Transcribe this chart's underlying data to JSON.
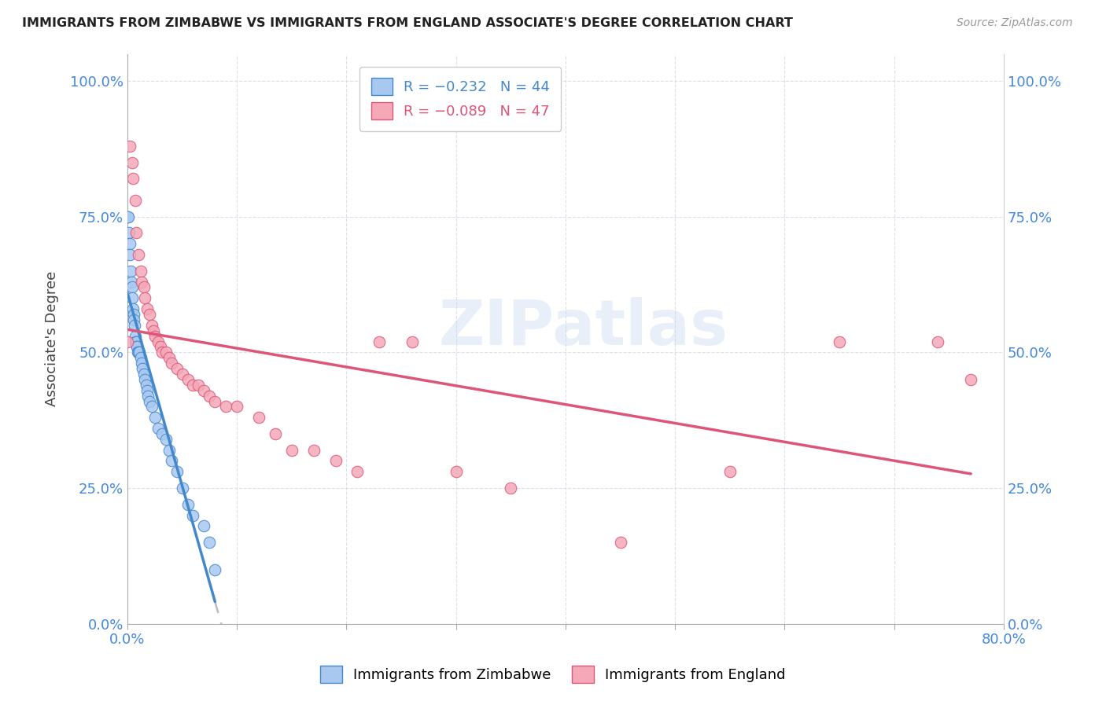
{
  "title": "IMMIGRANTS FROM ZIMBABWE VS IMMIGRANTS FROM ENGLAND ASSOCIATE'S DEGREE CORRELATION CHART",
  "source": "Source: ZipAtlas.com",
  "ylabel": "Associate's Degree",
  "ytick_labels": [
    "0.0%",
    "25.0%",
    "50.0%",
    "75.0%",
    "100.0%"
  ],
  "ytick_values": [
    0,
    25,
    50,
    75,
    100
  ],
  "xtick_labels": [
    "0.0%",
    "",
    "",
    "",
    "",
    "",
    "",
    "",
    "80.0%"
  ],
  "xtick_values": [
    0,
    10,
    20,
    30,
    40,
    50,
    60,
    70,
    80
  ],
  "legend_r_zimbabwe": "-0.232",
  "legend_n_zimbabwe": "44",
  "legend_r_england": "-0.089",
  "legend_n_england": "47",
  "color_zimbabwe": "#a8c8f0",
  "color_england": "#f4a8b8",
  "trendline_zimbabwe_color": "#4488cc",
  "trendline_england_color": "#dd5577",
  "trendline_dashed_color": "#bbbbcc",
  "watermark_text": "ZIPatlas",
  "zimbabwe_x": [
    0.0,
    0.1,
    0.15,
    0.2,
    0.25,
    0.3,
    0.35,
    0.4,
    0.45,
    0.5,
    0.55,
    0.6,
    0.65,
    0.7,
    0.75,
    0.8,
    0.85,
    0.9,
    0.95,
    1.0,
    1.1,
    1.2,
    1.3,
    1.4,
    1.5,
    1.6,
    1.7,
    1.8,
    1.9,
    2.0,
    2.2,
    2.5,
    2.8,
    3.2,
    3.5,
    3.8,
    4.0,
    4.5,
    5.0,
    5.5,
    6.0,
    7.0,
    7.5,
    8.0
  ],
  "zimbabwe_y": [
    75,
    75,
    72,
    70,
    68,
    65,
    63,
    62,
    60,
    58,
    57,
    56,
    55,
    53,
    52,
    52,
    51,
    51,
    50,
    50,
    50,
    49,
    48,
    47,
    46,
    45,
    44,
    43,
    42,
    41,
    40,
    38,
    36,
    35,
    34,
    32,
    30,
    28,
    25,
    22,
    20,
    18,
    15,
    10
  ],
  "england_x": [
    0.0,
    0.2,
    0.4,
    0.5,
    0.7,
    0.8,
    1.0,
    1.2,
    1.3,
    1.5,
    1.6,
    1.8,
    2.0,
    2.2,
    2.4,
    2.5,
    2.8,
    3.0,
    3.2,
    3.5,
    3.8,
    4.0,
    4.5,
    5.0,
    5.5,
    6.0,
    6.5,
    7.0,
    7.5,
    8.0,
    9.0,
    10.0,
    12.0,
    13.5,
    15.0,
    17.0,
    19.0,
    21.0,
    23.0,
    26.0,
    30.0,
    35.0,
    45.0,
    55.0,
    65.0,
    74.0,
    77.0
  ],
  "england_y": [
    52,
    88,
    85,
    82,
    78,
    72,
    68,
    65,
    63,
    62,
    60,
    58,
    57,
    55,
    54,
    53,
    52,
    51,
    50,
    50,
    49,
    48,
    47,
    46,
    45,
    44,
    44,
    43,
    42,
    41,
    40,
    40,
    38,
    35,
    32,
    32,
    30,
    28,
    52,
    52,
    28,
    25,
    15,
    28,
    52,
    52,
    45
  ],
  "xlim": [
    0,
    80
  ],
  "ylim": [
    0,
    105
  ],
  "background_color": "#ffffff",
  "plot_bg_color": "#ffffff"
}
